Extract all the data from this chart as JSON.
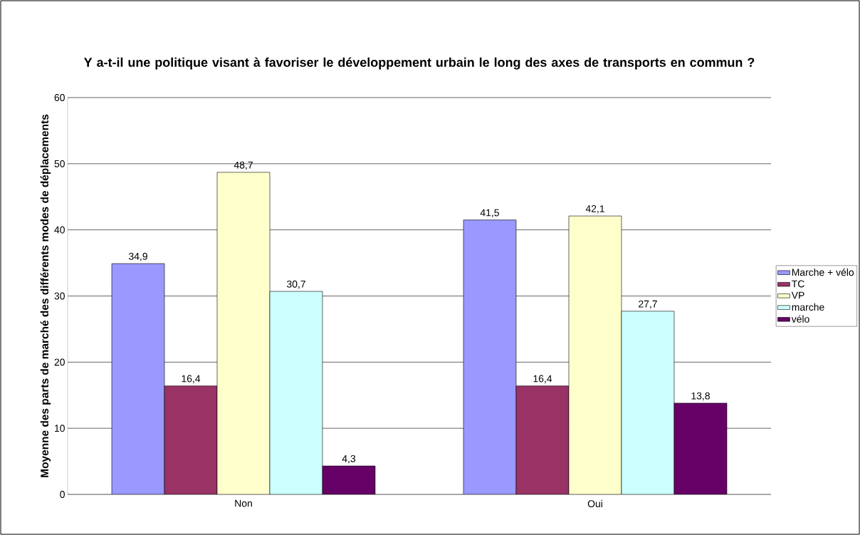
{
  "chart_data": {
    "type": "bar",
    "title": "Y a-t-il une politique visant à favoriser le développement urbain le long des axes de transports en commun ?",
    "ylabel": "Moyenne des parts de marché des différents modes de déplacements",
    "categories": [
      "Non",
      "Oui"
    ],
    "series": [
      {
        "name": "Marche + vélo",
        "color": "#9999ff",
        "values": [
          34.9,
          41.5
        ],
        "value_labels": [
          "34,9",
          "41,5"
        ]
      },
      {
        "name": "TC",
        "color": "#993366",
        "values": [
          16.4,
          16.4
        ],
        "value_labels": [
          "16,4",
          "16,4"
        ]
      },
      {
        "name": "VP",
        "color": "#ffffcc",
        "values": [
          48.7,
          42.1
        ],
        "value_labels": [
          "48,7",
          "42,1"
        ]
      },
      {
        "name": "marche",
        "color": "#ccffff",
        "values": [
          30.7,
          27.7
        ],
        "value_labels": [
          "30,7",
          "27,7"
        ]
      },
      {
        "name": "vélo",
        "color": "#660066",
        "values": [
          4.3,
          13.8
        ],
        "value_labels": [
          "4,3",
          "13,8"
        ]
      }
    ],
    "ylim": [
      0,
      60
    ],
    "yticks": [
      0,
      10,
      20,
      30,
      40,
      50,
      60
    ],
    "grid": "y",
    "legend": "right"
  }
}
